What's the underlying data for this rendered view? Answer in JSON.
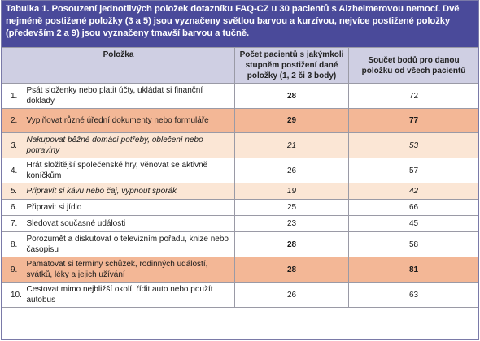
{
  "caption": "Tabulka 1. Posouzení jednotlivých položek dotazníku FAQ-CZ u 30 pacientů s Alzheimerovou nemocí. Dvě nejméně postižené položky (3 a 5) jsou vyznačeny světlou barvou a kurzívou, nejvíce postižené položky (především 2 a 9) jsou vyznačeny tmavší barvou a tučně.",
  "headers": {
    "item": "Položka",
    "count": "Počet pacientů s jakýmkoli stupněm postižení dané položky (1, 2 či 3 body)",
    "sum": "Součet bodů pro danou položku od všech pacientů"
  },
  "rows": [
    {
      "no": "1.",
      "text": "Psát složenky nebo platit účty, ukládat si finanční doklady",
      "count": "28",
      "sum": "72",
      "style": "plain",
      "count_bold": true
    },
    {
      "no": "2.",
      "text": "Vyplňovat různé úřední dokumenty nebo formuláře",
      "count": "29",
      "sum": "77",
      "style": "dark"
    },
    {
      "no": "3.",
      "text": "Nakupovat běžné domácí potřeby, oblečení nebo potraviny",
      "count": "21",
      "sum": "53",
      "style": "light"
    },
    {
      "no": "4.",
      "text": "Hrát složitější společenské hry, věnovat se aktivně koníčkům",
      "count": "26",
      "sum": "57",
      "style": "plain"
    },
    {
      "no": "5.",
      "text": "Připravit si kávu nebo čaj, vypnout sporák",
      "count": "19",
      "sum": "42",
      "style": "light"
    },
    {
      "no": "6.",
      "text": "Připravit si jídlo",
      "count": "25",
      "sum": "66",
      "style": "plain"
    },
    {
      "no": "7.",
      "text": "Sledovat současné události",
      "count": "23",
      "sum": "45",
      "style": "plain"
    },
    {
      "no": "8.",
      "text": "Porozumět a diskutovat o televizním pořadu, knize nebo časopisu",
      "count": "28",
      "sum": "58",
      "style": "plain",
      "count_bold": true
    },
    {
      "no": "9.",
      "text": "Pamatovat si termíny schůzek, rodinných událostí, svátků, léky a jejich užívání",
      "count": "28",
      "sum": "81",
      "style": "dark"
    },
    {
      "no": "10.",
      "text": "Cestovat mimo nejbližší okolí, řídit auto nebo použít autobus",
      "count": "26",
      "sum": "63",
      "style": "plain"
    }
  ]
}
